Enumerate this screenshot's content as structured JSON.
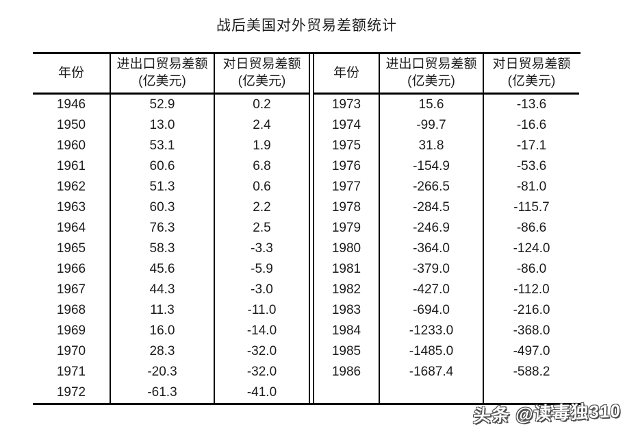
{
  "title": "战后美国对外贸易差额统计",
  "watermark": "头条 @读毒独310",
  "table": {
    "headers": {
      "year": "年份",
      "total_line1": "进出口贸易差额",
      "total_line2": "(亿美元)",
      "japan_line1": "对日贸易差额",
      "japan_line2": "(亿美元)"
    },
    "left_rows": [
      [
        "1946",
        "52.9",
        "0.2"
      ],
      [
        "1950",
        "13.0",
        "2.4"
      ],
      [
        "1960",
        "53.1",
        "1.9"
      ],
      [
        "1961",
        "60.6",
        "6.8"
      ],
      [
        "1962",
        "51.3",
        "0.6"
      ],
      [
        "1963",
        "60.3",
        "2.2"
      ],
      [
        "1964",
        "76.3",
        "2.5"
      ],
      [
        "1965",
        "58.3",
        "-3.3"
      ],
      [
        "1966",
        "45.6",
        "-5.9"
      ],
      [
        "1967",
        "44.3",
        "-3.0"
      ],
      [
        "1968",
        "11.3",
        "-11.0"
      ],
      [
        "1969",
        "16.0",
        "-14.0"
      ],
      [
        "1970",
        "28.3",
        "-32.0"
      ],
      [
        "1971",
        "-20.3",
        "-32.0"
      ],
      [
        "1972",
        "-61.3",
        "-41.0"
      ]
    ],
    "right_rows": [
      [
        "1973",
        "15.6",
        "-13.6"
      ],
      [
        "1974",
        "-99.7",
        "-16.6"
      ],
      [
        "1975",
        "31.8",
        "-17.1"
      ],
      [
        "1976",
        "-154.9",
        "-53.6"
      ],
      [
        "1977",
        "-266.5",
        "-81.0"
      ],
      [
        "1978",
        "-284.5",
        "-115.7"
      ],
      [
        "1979",
        "-246.9",
        "-86.6"
      ],
      [
        "1980",
        "-364.0",
        "-124.0"
      ],
      [
        "1981",
        "-379.0",
        "-86.0"
      ],
      [
        "1982",
        "-427.0",
        "-112.0"
      ],
      [
        "1983",
        "-694.0",
        "-216.0"
      ],
      [
        "1984",
        "-1233.0",
        "-368.0"
      ],
      [
        "1985",
        "-1485.0",
        "-497.0"
      ],
      [
        "1986",
        "-1687.4",
        "-588.2"
      ]
    ]
  },
  "chart_data": {
    "type": "table",
    "title": "战后美国对外贸易差额统计",
    "columns": [
      "年份",
      "进出口贸易差额(亿美元)",
      "对日贸易差额(亿美元)"
    ],
    "rows": [
      [
        1946,
        52.9,
        0.2
      ],
      [
        1950,
        13.0,
        2.4
      ],
      [
        1960,
        53.1,
        1.9
      ],
      [
        1961,
        60.6,
        6.8
      ],
      [
        1962,
        51.3,
        0.6
      ],
      [
        1963,
        60.3,
        2.2
      ],
      [
        1964,
        76.3,
        2.5
      ],
      [
        1965,
        58.3,
        -3.3
      ],
      [
        1966,
        45.6,
        -5.9
      ],
      [
        1967,
        44.3,
        -3.0
      ],
      [
        1968,
        11.3,
        -11.0
      ],
      [
        1969,
        16.0,
        -14.0
      ],
      [
        1970,
        28.3,
        -32.0
      ],
      [
        1971,
        -20.3,
        -32.0
      ],
      [
        1972,
        -61.3,
        -41.0
      ],
      [
        1973,
        15.6,
        -13.6
      ],
      [
        1974,
        -99.7,
        -16.6
      ],
      [
        1975,
        31.8,
        -17.1
      ],
      [
        1976,
        -154.9,
        -53.6
      ],
      [
        1977,
        -266.5,
        -81.0
      ],
      [
        1978,
        -284.5,
        -115.7
      ],
      [
        1979,
        -246.9,
        -86.6
      ],
      [
        1980,
        -364.0,
        -124.0
      ],
      [
        1981,
        -379.0,
        -86.0
      ],
      [
        1982,
        -427.0,
        -112.0
      ],
      [
        1983,
        -694.0,
        -216.0
      ],
      [
        1984,
        -1233.0,
        -368.0
      ],
      [
        1985,
        -1485.0,
        -497.0
      ],
      [
        1986,
        -1687.4,
        -588.2
      ]
    ],
    "layout": {
      "panels": 2,
      "left_panel_years": "1946-1972",
      "right_panel_years": "1973-1986",
      "grid": "thick top/header/bottom rules, thin column rules, double rule between panels, no row rules"
    }
  }
}
